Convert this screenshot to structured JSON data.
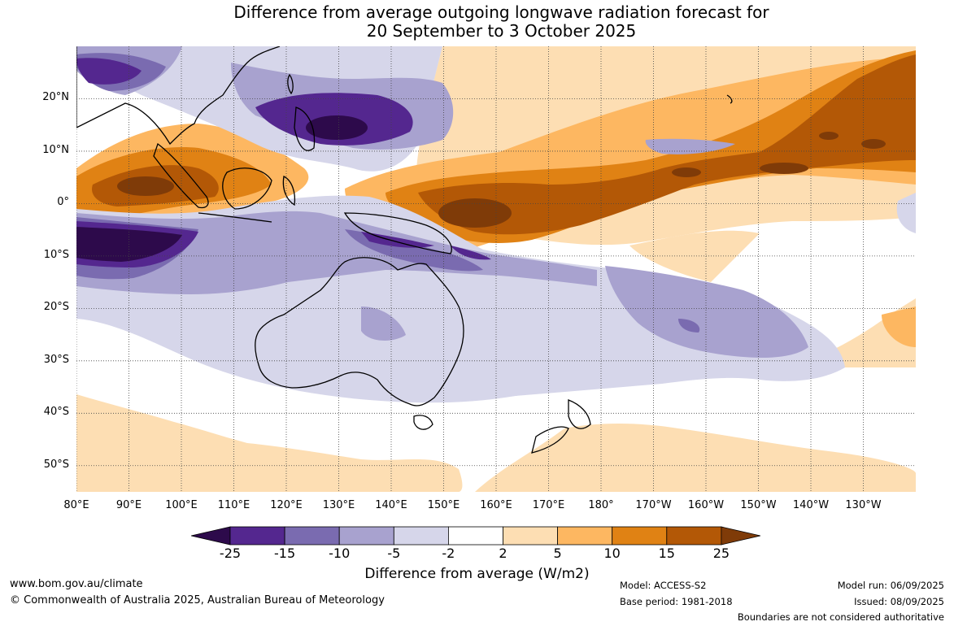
{
  "title_line1": "Difference from average outgoing longwave radiation forecast for",
  "title_line2": "20 September to 3 October 2025",
  "lat_labels": [
    "20°N",
    "10°N",
    "0°",
    "10°S",
    "20°S",
    "30°S",
    "40°S",
    "50°S"
  ],
  "lon_labels": [
    "80°E",
    "90°E",
    "100°E",
    "110°E",
    "120°E",
    "130°E",
    "140°E",
    "150°E",
    "160°E",
    "170°E",
    "180°",
    "170°W",
    "160°W",
    "150°W",
    "140°W",
    "130°W"
  ],
  "colorbar": {
    "ticks": [
      "-25",
      "-15",
      "-10",
      "-5",
      "-2",
      "2",
      "5",
      "10",
      "15",
      "25"
    ],
    "colors": [
      "#2d0a4b",
      "#54278f",
      "#7a6bb0",
      "#a8a2cf",
      "#d6d6ea",
      "#ffffff",
      "#fddeb3",
      "#fdb761",
      "#e08214",
      "#b35806",
      "#7f3b08"
    ],
    "label": "Difference from average (W/m2)"
  },
  "map": {
    "lat_range": [
      -55,
      30
    ],
    "lon_range": [
      80,
      240
    ],
    "land_color": "#000000"
  },
  "footer": {
    "website": "www.bom.gov.au/climate",
    "copyright": "© Commonwealth of Australia 2025, Australian Bureau of Meteorology",
    "model": "Model: ACCESS-S2",
    "base_period": "Base period: 1981-2018",
    "model_run": "Model run: 06/09/2025",
    "issued": "Issued: 08/09/2025",
    "disclaimer": "Boundaries are not considered authoritative"
  }
}
